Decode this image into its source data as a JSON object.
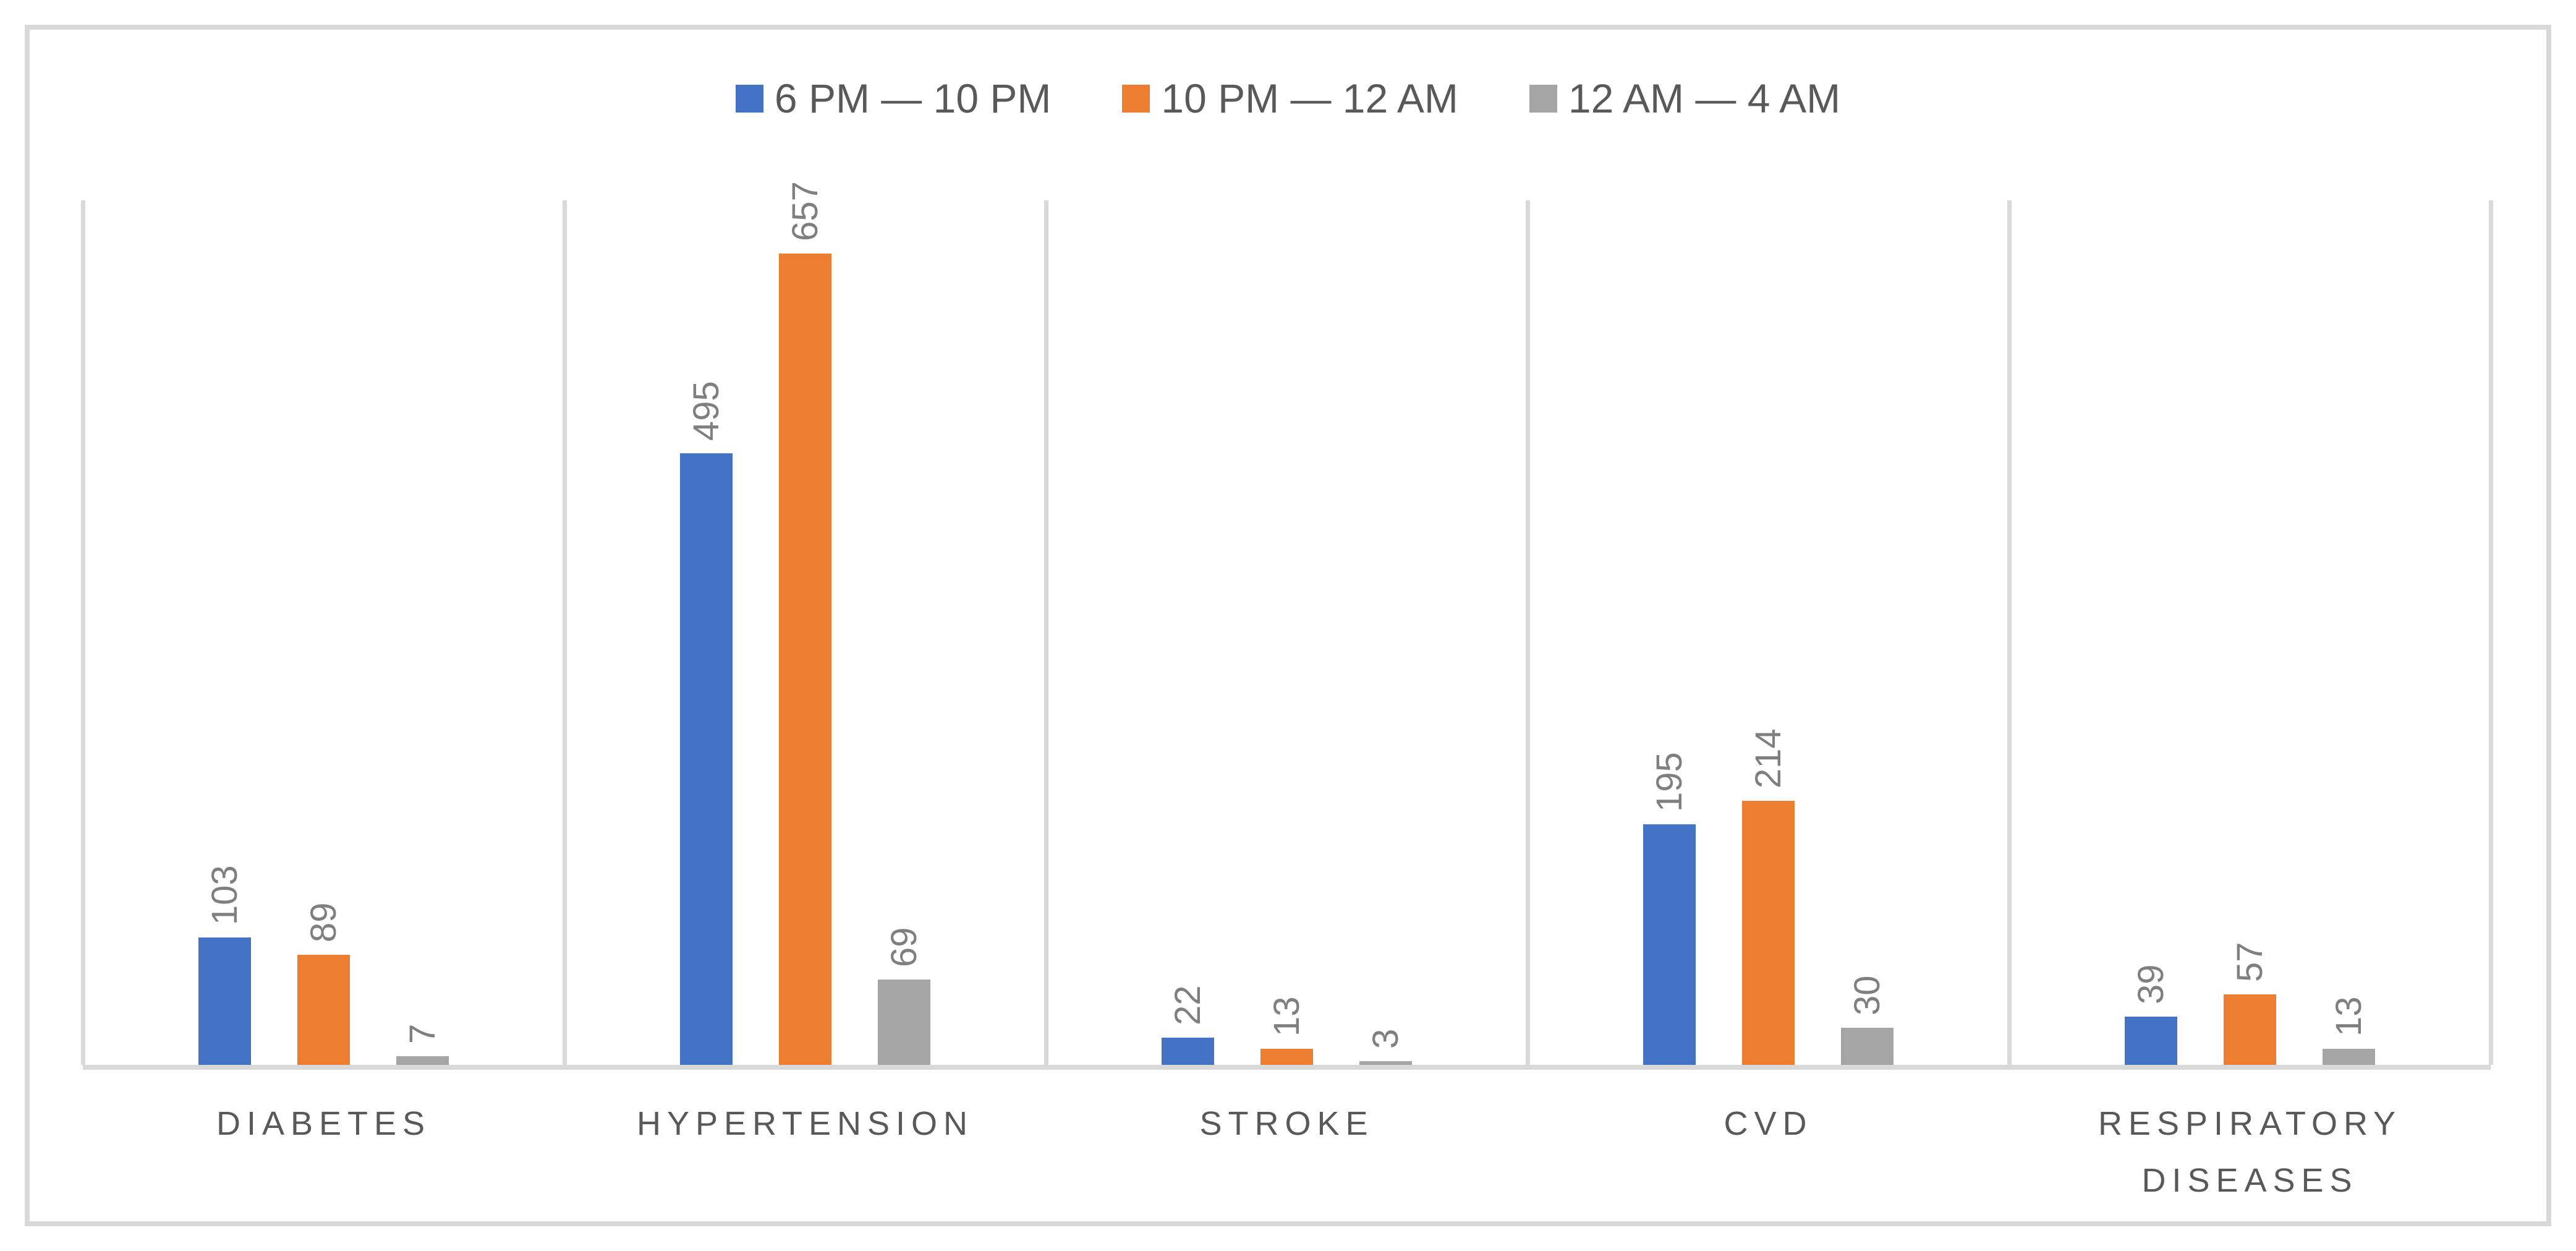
{
  "chart_data": {
    "type": "bar",
    "title": "",
    "xlabel": "",
    "ylabel": "",
    "categories": [
      "DIABETES",
      "HYPERTENSION",
      "STROKE",
      "CVD",
      "RESPIRATORY DISEASES"
    ],
    "series": [
      {
        "name": "6 PM — 10 PM",
        "color": "#4472C4",
        "values": [
          103,
          495,
          22,
          195,
          39
        ]
      },
      {
        "name": "10 PM — 12 AM",
        "color": "#ED7D31",
        "values": [
          89,
          657,
          13,
          214,
          57
        ]
      },
      {
        "name": "12 AM — 4 AM",
        "color": "#A5A5A5",
        "values": [
          7,
          69,
          3,
          30,
          13
        ]
      }
    ],
    "ylim": [
      0,
      700
    ],
    "y_axis_visible": false,
    "grid": "vertical-category-separators",
    "legend_position": "top-center",
    "data_labels": "value-above-bar-rotated-90",
    "style": {
      "bar_blue": "#4472C4",
      "bar_orange": "#ED7D31",
      "bar_gray": "#A5A5A5",
      "frame_border": "#D9D9D9",
      "gridline": "#D9D9D9",
      "axis_line": "#D9D9D9",
      "data_label_text": "#7F7F7F",
      "category_label_text": "#595959",
      "legend_text": "#595959",
      "background": "#FFFFFF"
    }
  }
}
